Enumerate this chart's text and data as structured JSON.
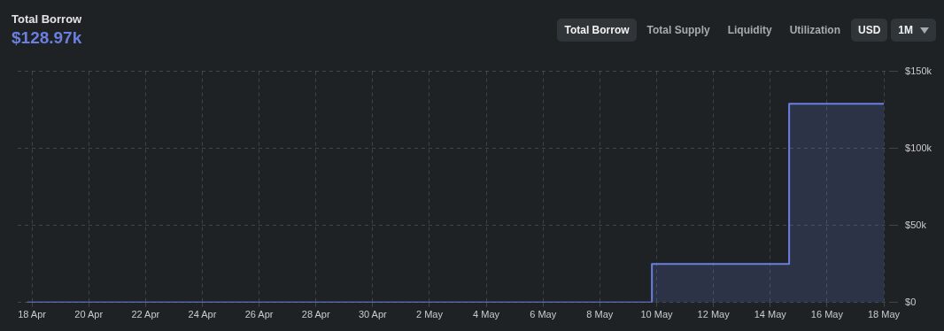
{
  "chart_data": {
    "type": "step",
    "title": "Total Borrow",
    "subtitle": "$128.97k",
    "annotations": [
      "Total Borrow",
      "Total Supply",
      "Liquidity",
      "Utilization",
      "USD",
      "1M"
    ],
    "series": [
      {
        "color": "#6b7fe0",
        "x": [
          "--04-17T20:00",
          "--05-09T20:00",
          "--05-14T16:00",
          "--05-18T00:00"
        ],
        "values": [
          0,
          25000,
          129000,
          129000
        ]
      }
    ],
    "xlim": [
      "--04-17T12:00",
      "--05-18T06:00"
    ],
    "xticks": [
      {
        "value": "--04-18",
        "label": "18 Apr"
      },
      {
        "value": "--04-20",
        "label": "20 Apr"
      },
      {
        "value": "--04-22",
        "label": "22 Apr"
      },
      {
        "value": "--04-24",
        "label": "24 Apr"
      },
      {
        "value": "--04-26",
        "label": "26 Apr"
      },
      {
        "value": "--04-28",
        "label": "28 Apr"
      },
      {
        "value": "--04-30",
        "label": "30 Apr"
      },
      {
        "value": "--05-02",
        "label": "2 May"
      },
      {
        "value": "--05-04",
        "label": "4 May"
      },
      {
        "value": "--05-06",
        "label": "6 May"
      },
      {
        "value": "--05-08",
        "label": "8 May"
      },
      {
        "value": "--05-10",
        "label": "10 May"
      },
      {
        "value": "--05-12",
        "label": "12 May"
      },
      {
        "value": "--05-14",
        "label": "14 May"
      },
      {
        "value": "--05-16",
        "label": "16 May"
      },
      {
        "value": "--05-18",
        "label": "18 May"
      }
    ],
    "ylim": [
      0,
      150000
    ],
    "yticks": [
      {
        "value": 0,
        "label": "$0"
      },
      {
        "value": 50000,
        "label": "$50k"
      },
      {
        "value": 100000,
        "label": "$100k"
      },
      {
        "value": 150000,
        "label": "$150k"
      }
    ],
    "grid": true,
    "legend": false,
    "marker": "none",
    "line_style": "solid"
  }
}
